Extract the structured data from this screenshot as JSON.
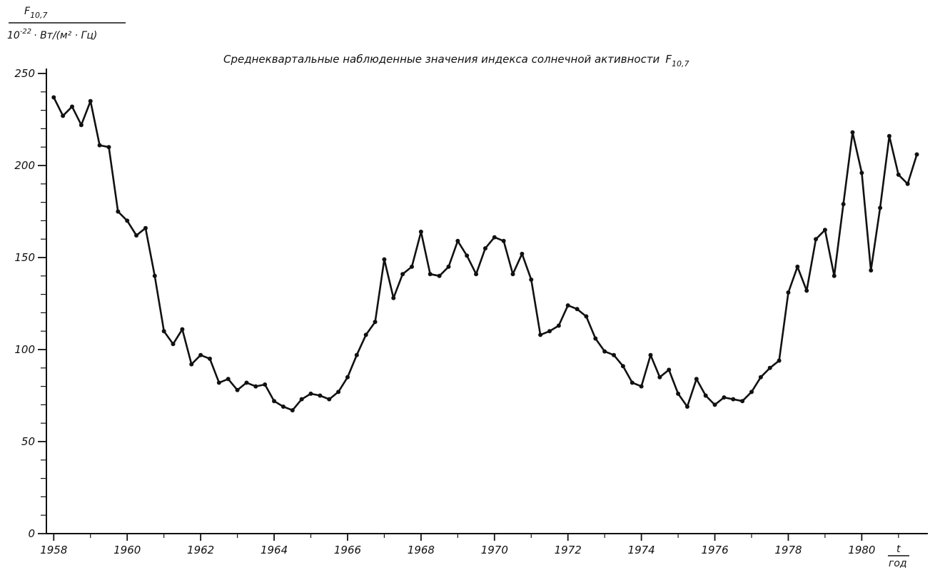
{
  "chart_data": {
    "type": "line",
    "title": "Среднеквартальные наблюденные значения индекса солнечной активности",
    "title_symbol": "F",
    "title_symbol_sub": "10,7",
    "ylabel": {
      "symbol": "F",
      "symbol_sub": "10,7",
      "unit_prefix": "10",
      "unit_exp": "-22",
      "unit_rest": "· Вт/(м² · Гц)"
    },
    "xlabel": {
      "symbol": "t",
      "unit": "год"
    },
    "xlim": [
      1957.8,
      1981.8
    ],
    "ylim": [
      0,
      250
    ],
    "y_ticks": [
      0,
      50,
      100,
      150,
      200,
      250
    ],
    "x_ticks": [
      1958,
      1960,
      1962,
      1964,
      1966,
      1968,
      1970,
      1972,
      1974,
      1976,
      1978,
      1980
    ],
    "grid": false,
    "series": [
      {
        "x": [
          1958.0,
          1958.25,
          1958.5,
          1958.75,
          1959.0,
          1959.25,
          1959.5,
          1959.75,
          1960.0,
          1960.25,
          1960.5,
          1960.75,
          1961.0,
          1961.25,
          1961.5,
          1961.75,
          1962.0,
          1962.25,
          1962.5,
          1962.75,
          1963.0,
          1963.25,
          1963.5,
          1963.75,
          1964.0,
          1964.25,
          1964.5,
          1964.75,
          1965.0,
          1965.25,
          1965.5,
          1965.75,
          1966.0,
          1966.25,
          1966.5,
          1966.75,
          1967.0,
          1967.25,
          1967.5,
          1967.75,
          1968.0,
          1968.25,
          1968.5,
          1968.75,
          1969.0,
          1969.25,
          1969.5,
          1969.75,
          1970.0,
          1970.25,
          1970.5,
          1970.75,
          1971.0,
          1971.25,
          1971.5,
          1971.75,
          1972.0,
          1972.25,
          1972.5,
          1972.75,
          1973.0,
          1973.25,
          1973.5,
          1973.75,
          1974.0,
          1974.25,
          1974.5,
          1974.75,
          1975.0,
          1975.25,
          1975.5,
          1975.75,
          1976.0,
          1976.25,
          1976.5,
          1976.75,
          1977.0,
          1977.25,
          1977.5,
          1977.75,
          1978.0,
          1978.25,
          1978.5,
          1978.75,
          1979.0,
          1979.25,
          1979.5,
          1979.75,
          1980.0,
          1980.25,
          1980.5,
          1980.75,
          1981.0,
          1981.25,
          1981.5
        ],
        "values": [
          237,
          227,
          232,
          222,
          235,
          211,
          210,
          175,
          170,
          162,
          166,
          140,
          110,
          103,
          111,
          92,
          97,
          95,
          82,
          84,
          78,
          82,
          80,
          81,
          72,
          69,
          67,
          73,
          76,
          75,
          73,
          77,
          85,
          97,
          108,
          115,
          149,
          128,
          141,
          145,
          164,
          141,
          140,
          145,
          159,
          151,
          141,
          155,
          161,
          159,
          141,
          152,
          138,
          108,
          110,
          113,
          124,
          122,
          118,
          106,
          99,
          97,
          91,
          82,
          80,
          97,
          85,
          89,
          76,
          69,
          84,
          75,
          70,
          74,
          73,
          72,
          77,
          85,
          90,
          94,
          131,
          145,
          132,
          160,
          165,
          140,
          179,
          218,
          196,
          143,
          177,
          216,
          195,
          190,
          206
        ]
      }
    ]
  }
}
